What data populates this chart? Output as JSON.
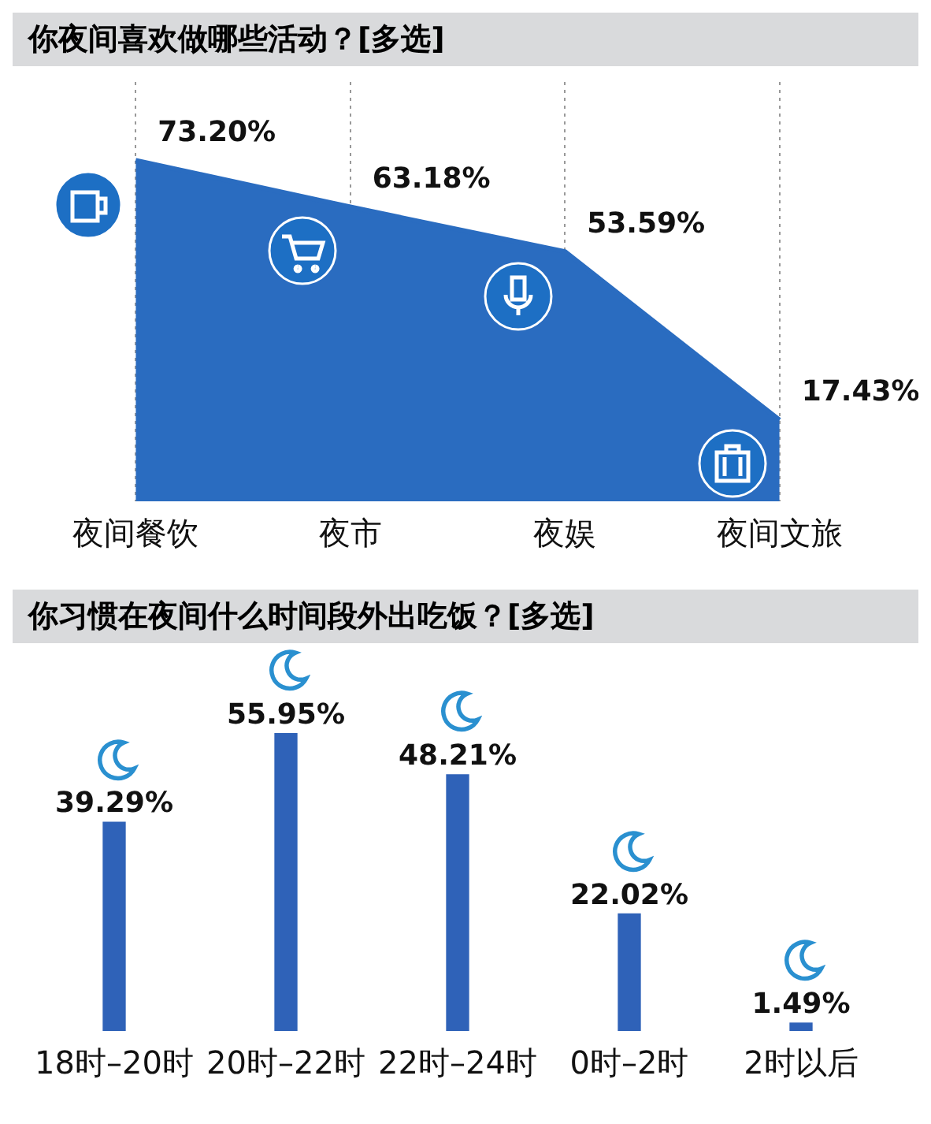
{
  "chart_data": [
    {
      "type": "area",
      "title": "你夜间喜欢做哪些活动？[多选]",
      "categories": [
        "夜间餐饮",
        "夜市",
        "夜娱",
        "夜间文旅"
      ],
      "values": [
        73.2,
        63.18,
        53.59,
        17.43
      ],
      "value_labels": [
        "73.20%",
        "63.18%",
        "53.59%",
        "17.43%"
      ],
      "color": "#2a6cc0",
      "grid": "x"
    },
    {
      "type": "bar",
      "title": "你习惯在夜间什么时间段外出吃饭？[多选]",
      "categories": [
        "18时–20时",
        "20时–22时",
        "22时–24时",
        "0时–2时",
        "2时以后"
      ],
      "values": [
        39.29,
        55.95,
        48.21,
        22.02,
        1.49
      ],
      "value_labels": [
        "39.29%",
        "55.95%",
        "48.21%",
        "22.02%",
        "1.49%"
      ],
      "color": "#2f62b8"
    }
  ]
}
